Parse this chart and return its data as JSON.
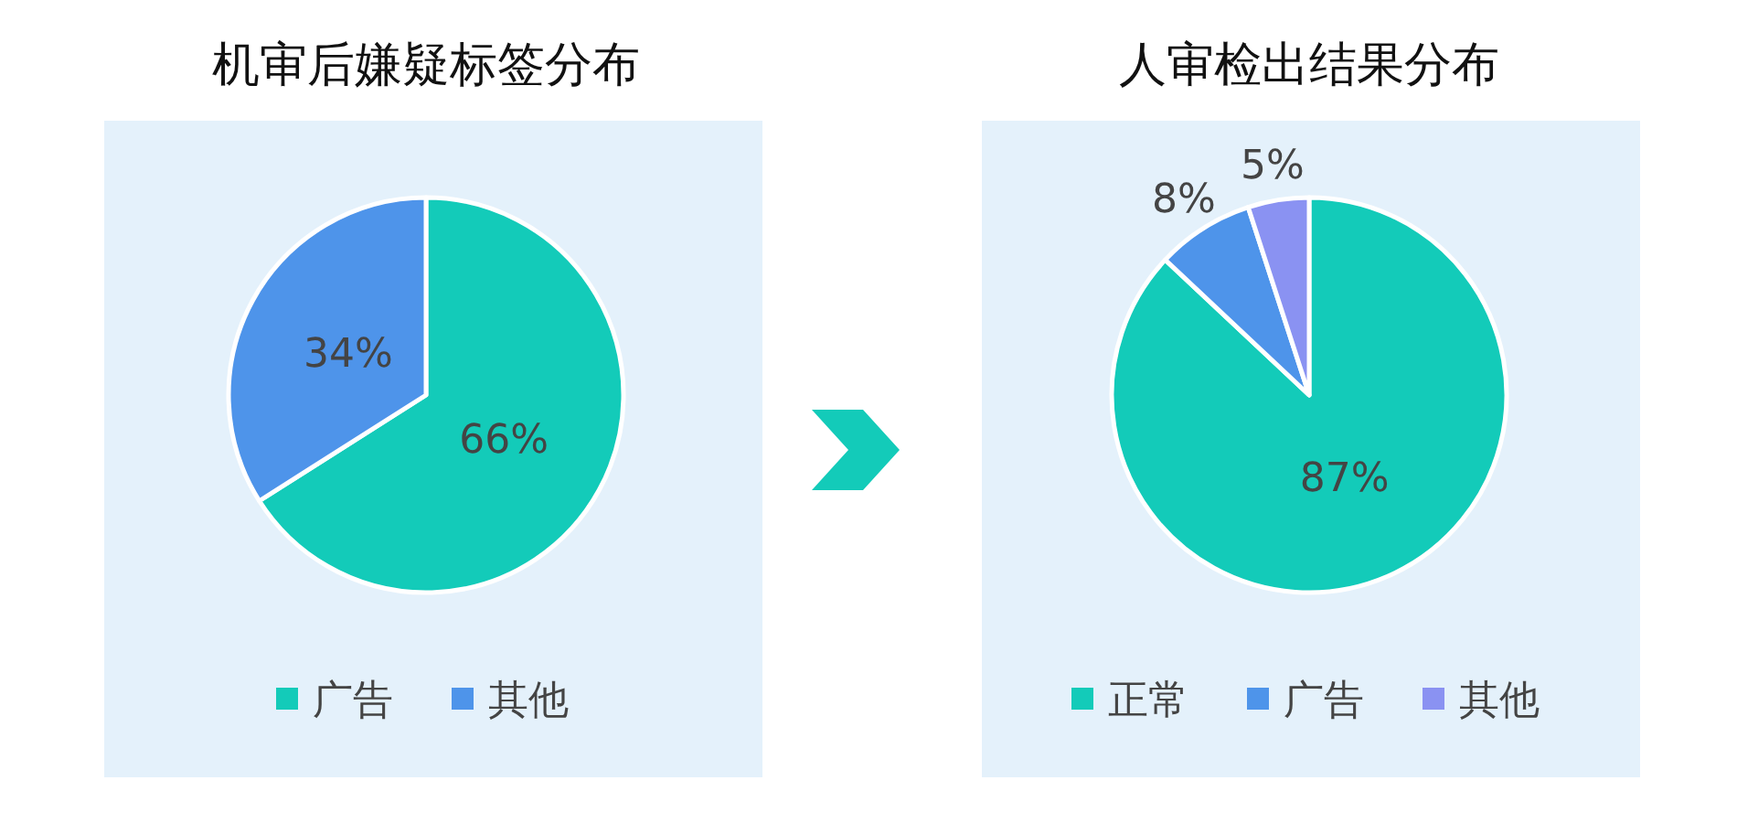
{
  "chart_data": [
    {
      "type": "pie",
      "title": "机审后嫌疑标签分布",
      "categories": [
        "广告",
        "其他"
      ],
      "values": [
        66,
        34
      ],
      "colors": [
        "#13cbb9",
        "#4e94ea"
      ],
      "value_labels": [
        "66%",
        "34%"
      ],
      "legend": "bottom"
    },
    {
      "type": "pie",
      "title": "人审检出结果分布",
      "categories": [
        "正常",
        "广告",
        "其他"
      ],
      "values": [
        87,
        8,
        5
      ],
      "colors": [
        "#13cbb9",
        "#4e94ea",
        "#8a92f2"
      ],
      "value_labels": [
        "87%",
        "8%",
        "5%"
      ],
      "legend": "bottom"
    }
  ]
}
